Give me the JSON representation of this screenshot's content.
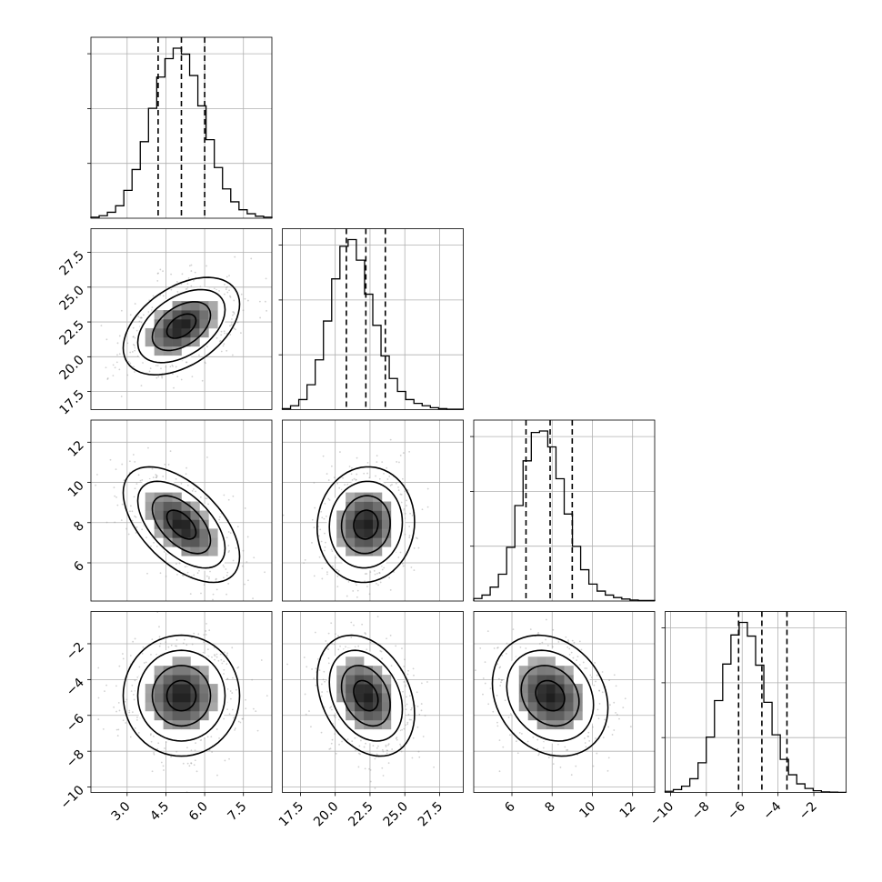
{
  "chart_data": {
    "type": "corner",
    "parameters": [
      {
        "range": [
          1.6,
          8.6
        ],
        "quantiles": [
          4.2,
          5.1,
          6.0
        ],
        "ticks": [
          "3.0",
          "4.5",
          "6.0",
          "7.5"
        ],
        "hist": [
          0.2,
          0.5,
          1.2,
          2.5,
          5.6,
          9.8,
          15.4,
          22.1,
          28.4,
          32.1,
          34.2,
          33.0,
          28.7,
          22.6,
          15.8,
          10.2,
          5.9,
          3.3,
          1.7,
          0.9,
          0.4,
          0.2
        ]
      },
      {
        "range": [
          16.2,
          29.2
        ],
        "quantiles": [
          20.8,
          22.2,
          23.6
        ],
        "ticks": [
          "17.5",
          "20.0",
          "22.5",
          "25.0",
          "27.5"
        ],
        "hist": [
          0.2,
          0.8,
          2.1,
          5.2,
          10.4,
          18.5,
          27.3,
          34.1,
          35.5,
          31.2,
          24.1,
          17.6,
          11.2,
          6.5,
          3.8,
          2.1,
          1.3,
          0.8,
          0.4,
          0.2,
          0.1,
          0.1
        ]
      },
      {
        "range": [
          4.1,
          13.1
        ],
        "quantiles": [
          6.7,
          7.9,
          9.0
        ],
        "ticks": [
          "6",
          "8",
          "10",
          "12"
        ],
        "hist": [
          0.5,
          1.2,
          2.8,
          5.4,
          10.8,
          19.2,
          28.2,
          33.9,
          34.2,
          31.0,
          24.6,
          17.5,
          11.0,
          6.3,
          3.4,
          2.0,
          1.2,
          0.7,
          0.4,
          0.2,
          0.1,
          0.1
        ]
      },
      {
        "range": [
          -10.3,
          -0.2
        ],
        "quantiles": [
          -6.2,
          -4.9,
          -3.5
        ],
        "ticks": [
          "−10",
          "−8",
          "−6",
          "−4",
          "−2"
        ],
        "hist": [
          0.2,
          0.5,
          1.1,
          2.4,
          5.2,
          9.7,
          16.1,
          22.5,
          27.6,
          29.8,
          27.4,
          22.3,
          15.8,
          10.1,
          5.8,
          3.1,
          1.5,
          0.7,
          0.3,
          0.1,
          0.05,
          0.02
        ]
      }
    ],
    "pairs": [
      {
        "row": 1,
        "col": 0,
        "rho": 0.45
      },
      {
        "row": 2,
        "col": 0,
        "rho": -0.55
      },
      {
        "row": 2,
        "col": 1,
        "rho": 0.05
      },
      {
        "row": 3,
        "col": 0,
        "rho": 0.0
      },
      {
        "row": 3,
        "col": 1,
        "rho": -0.3
      },
      {
        "row": 3,
        "col": 2,
        "rho": -0.2
      }
    ],
    "contour_levels_sigma": [
      0.5,
      1.0,
      1.5,
      2.0
    ],
    "show_datapoints": true,
    "grid": true,
    "quantile_line_style": "dashed"
  }
}
